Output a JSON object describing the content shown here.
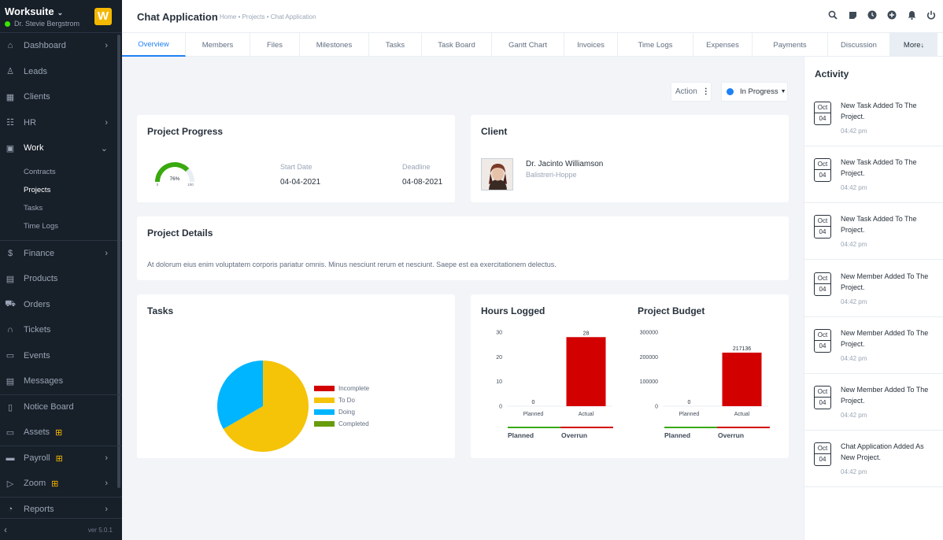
{
  "app": {
    "name": "Worksuite",
    "user": "Dr. Stevie Bergstrom",
    "logo_letter": "W",
    "version": "ver 5.0.1"
  },
  "sidebar": {
    "items": [
      {
        "label": "Dashboard",
        "icon": "home-icon",
        "arrow": true
      },
      {
        "label": "Leads",
        "icon": "person-icon",
        "arrow": false
      },
      {
        "label": "Clients",
        "icon": "building-icon",
        "arrow": false
      },
      {
        "label": "HR",
        "icon": "people-icon",
        "arrow": true
      },
      {
        "label": "Work",
        "icon": "briefcase-icon",
        "arrow": true
      }
    ],
    "work_sub": [
      "Contracts",
      "Projects",
      "Tasks",
      "Time Logs"
    ],
    "items2": [
      {
        "label": "Finance",
        "icon": "dollar-icon",
        "arrow": true
      },
      {
        "label": "Products",
        "icon": "box-icon",
        "arrow": false
      },
      {
        "label": "Orders",
        "icon": "cart-icon",
        "arrow": false
      },
      {
        "label": "Tickets",
        "icon": "headset-icon",
        "arrow": false
      },
      {
        "label": "Events",
        "icon": "calendar-icon",
        "arrow": false
      },
      {
        "label": "Messages",
        "icon": "chat-icon",
        "arrow": false
      },
      {
        "label": "Notice Board",
        "icon": "clipboard-icon",
        "arrow": false
      },
      {
        "label": "Assets",
        "icon": "monitor-icon",
        "arrow": false,
        "gift": true
      },
      {
        "label": "Payroll",
        "icon": "wallet-icon",
        "arrow": true,
        "gift": true
      },
      {
        "label": "Zoom",
        "icon": "video-icon",
        "arrow": true,
        "gift": true
      },
      {
        "label": "Reports",
        "icon": "pie-icon",
        "arrow": true
      }
    ]
  },
  "header": {
    "title": "Chat Application",
    "breadcrumb": "Home • Projects • Chat Application"
  },
  "tabs": [
    "Overview",
    "Members",
    "Files",
    "Milestones",
    "Tasks",
    "Task Board",
    "Gantt Chart",
    "Invoices",
    "Time Logs",
    "Expenses",
    "Payments",
    "Discussion",
    "More"
  ],
  "actions": {
    "action_label": "Action",
    "status_label": "In Progress",
    "status_color": "#1d82f5"
  },
  "progress": {
    "title": "Project Progress",
    "percent": 76,
    "percent_label": "76%",
    "min": "0",
    "max": "100",
    "start_label": "Start Date",
    "start": "04-04-2021",
    "deadline_label": "Deadline",
    "deadline": "04-08-2021"
  },
  "client": {
    "title": "Client",
    "name": "Dr. Jacinto Williamson",
    "company": "Balistreri-Hoppe"
  },
  "details": {
    "title": "Project Details",
    "text": "At dolorum eius enim voluptatem corporis pariatur omnis. Minus nesciunt rerum et nesciunt. Saepe est ea exercitationem delectus."
  },
  "tasks_card": {
    "title": "Tasks"
  },
  "hours_card": {
    "title": "Hours Logged",
    "legend_planned": "Planned",
    "legend_overrun": "Overrun"
  },
  "budget_card": {
    "title": "Project Budget",
    "legend_planned": "Planned",
    "legend_overrun": "Overrun"
  },
  "chart_data": [
    {
      "type": "pie",
      "categories": [
        "Incomplete",
        "To Do",
        "Doing",
        "Completed"
      ],
      "values": [
        0,
        66.7,
        33.3,
        0
      ],
      "colors": [
        "#d30000",
        "#f5c308",
        "#00b5ff",
        "#679c0d"
      ]
    },
    {
      "type": "bar",
      "categories": [
        "Planned",
        "Actual"
      ],
      "values": [
        0,
        28
      ],
      "ylim": [
        0,
        30
      ],
      "yticks": [
        "30",
        "20",
        "10",
        "0"
      ],
      "value_labels": [
        "0",
        "28"
      ],
      "color": "#d30000"
    },
    {
      "type": "bar",
      "categories": [
        "Planned",
        "Actual"
      ],
      "values": [
        0,
        217136
      ],
      "ylim": [
        0,
        300000
      ],
      "yticks": [
        "300000",
        "200000",
        "100000",
        "0"
      ],
      "value_labels": [
        "0",
        "217136"
      ],
      "color": "#d30000"
    }
  ],
  "activity": {
    "title": "Activity",
    "items": [
      {
        "month": "Oct",
        "day": "04",
        "text": "New Task Added To The Project.",
        "time": "04:42 pm"
      },
      {
        "month": "Oct",
        "day": "04",
        "text": "New Task Added To The Project.",
        "time": "04:42 pm"
      },
      {
        "month": "Oct",
        "day": "04",
        "text": "New Task Added To The Project.",
        "time": "04:42 pm"
      },
      {
        "month": "Oct",
        "day": "04",
        "text": "New Member Added To The Project.",
        "time": "04:42 pm"
      },
      {
        "month": "Oct",
        "day": "04",
        "text": "New Member Added To The Project.",
        "time": "04:42 pm"
      },
      {
        "month": "Oct",
        "day": "04",
        "text": "New Member Added To The Project.",
        "time": "04:42 pm"
      },
      {
        "month": "Oct",
        "day": "04",
        "text": "Chat Application Added As New Project.",
        "time": "04:42 pm"
      }
    ]
  }
}
